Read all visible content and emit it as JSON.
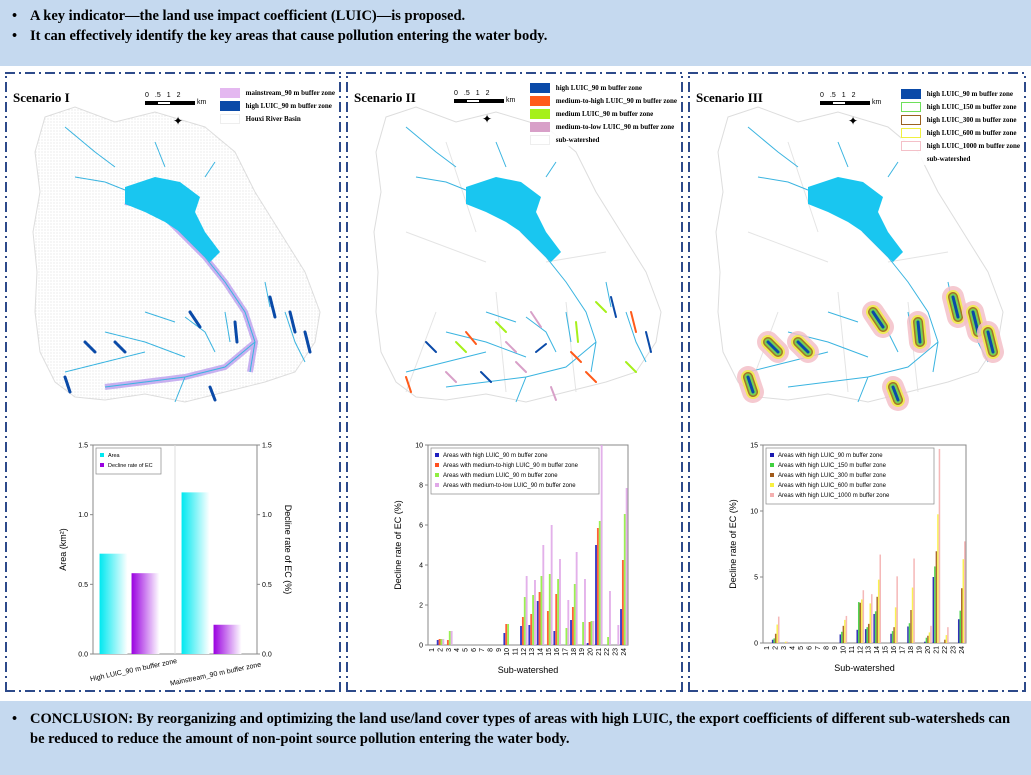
{
  "top_banner": {
    "bullets": [
      "A key indicator—the land use impact coefficient (LUIC)—is proposed.",
      "It can effectively identify the key areas that cause pollution entering the water body."
    ]
  },
  "bottom_banner": {
    "text": "CONCLUSION: By reorganizing and optimizing the land use/land cover types of areas with high LUIC, the export coefficients of different sub-watersheds can be reduced to reduce the amount of non-point source pollution entering the water body."
  },
  "scale_bar": {
    "ticks": [
      "0",
      ".5",
      "1",
      "2"
    ],
    "unit": "km"
  },
  "scenarios": [
    {
      "title": "Scenario I",
      "legend": [
        {
          "label": "mainstream_90 m buffer zone",
          "color": "#e4b8f0"
        },
        {
          "label": "high LUIC_90 m buffer zone",
          "color": "#0a4aa8"
        },
        {
          "label": "Houxi River Basin",
          "color": "#ffffff"
        }
      ]
    },
    {
      "title": "Scenario II",
      "legend": [
        {
          "label": "high LUIC_90 m buffer zone",
          "color": "#0a4aa8"
        },
        {
          "label": "medium-to-high LUIC_90 m buffer zone",
          "color": "#ff5a1a"
        },
        {
          "label": "medium LUIC_90 m buffer zone",
          "color": "#a6f01a"
        },
        {
          "label": "medium-to-low LUIC_90 m buffer zone",
          "color": "#d8a0c8"
        },
        {
          "label": "sub-watershed",
          "color": "#ffffff"
        }
      ]
    },
    {
      "title": "Scenario III",
      "legend": [
        {
          "label": "high LUIC_90 m buffer zone",
          "color": "#0a4aa8",
          "fill": true
        },
        {
          "label": "high LUIC_150 m buffer zone",
          "color": "#6ee05a"
        },
        {
          "label": "high LUIC_300 m buffer zone",
          "color": "#9a6020"
        },
        {
          "label": "high LUIC_600 m buffer zone",
          "color": "#f0f040"
        },
        {
          "label": "high LUIC_1000 m buffer zone",
          "color": "#f4c0c8"
        },
        {
          "label": "sub-watershed",
          "color": "#ffffff"
        }
      ]
    }
  ],
  "chart_data": [
    {
      "type": "bar",
      "title": "",
      "categories": [
        "High LUIC_90 m buffer zone",
        "Mainstream_90 m buffer zone"
      ],
      "series": [
        {
          "name": "Area",
          "values": [
            0.72,
            1.16
          ],
          "color": "#00e8f0"
        },
        {
          "name": "Decline rate of EC",
          "values": [
            0.58,
            0.21
          ],
          "color": "#9a00e0"
        }
      ],
      "ylabel": "Area (km²)",
      "y2label": "Decline rate of EC (%)",
      "ylim": [
        0,
        1.5
      ],
      "y2lim": [
        0,
        1.5
      ],
      "yticks": [
        "0.0",
        "0.5",
        "1.0",
        "1.5"
      ],
      "legend": "top-left"
    },
    {
      "type": "bar",
      "categories": [
        "1",
        "2",
        "3",
        "4",
        "5",
        "6",
        "7",
        "8",
        "9",
        "10",
        "11",
        "12",
        "13",
        "14",
        "15",
        "16",
        "17",
        "18",
        "19",
        "20",
        "21",
        "22",
        "23",
        "24"
      ],
      "series": [
        {
          "name": "Areas with high LUIC_90 m buffer zone",
          "color": "#2020c0",
          "values": [
            0,
            0.25,
            0,
            0,
            0,
            0,
            0,
            0,
            0,
            0.6,
            0,
            0.95,
            1.0,
            2.2,
            0,
            0.7,
            0,
            1.25,
            0,
            0.1,
            5.0,
            0,
            0,
            1.8
          ]
        },
        {
          "name": "Areas with medium-to-high LUIC_90 m buffer zone",
          "color": "#ff5020",
          "values": [
            0,
            0.3,
            0.25,
            0,
            0,
            0,
            0,
            0,
            0,
            1.05,
            0,
            1.4,
            1.55,
            2.65,
            1.7,
            2.55,
            0,
            1.9,
            0,
            1.15,
            5.85,
            0,
            0,
            4.25
          ]
        },
        {
          "name": "Areas with medium LUIC_90 m buffer zone",
          "color": "#90ee40",
          "values": [
            0,
            0.3,
            0.7,
            0,
            0,
            0,
            0,
            0,
            0,
            1.05,
            0,
            2.4,
            2.5,
            3.45,
            3.55,
            3.3,
            0.85,
            3.05,
            1.15,
            1.2,
            6.2,
            0.4,
            0,
            6.55
          ]
        },
        {
          "name": "Areas with medium-to-low LUIC_90 m buffer zone",
          "color": "#e0a8e8",
          "values": [
            0,
            0.3,
            0.7,
            0,
            0,
            0,
            0,
            0,
            0,
            0,
            0,
            3.45,
            3.25,
            5.0,
            6.0,
            4.3,
            2.25,
            4.65,
            3.3,
            1.2,
            10.0,
            2.7,
            1.0,
            7.85
          ]
        }
      ],
      "xlabel": "Sub-watershed",
      "ylabel": "Decline rate of EC (%)",
      "ylim": [
        0,
        10
      ],
      "yticks": [
        "0",
        "2",
        "4",
        "6",
        "8",
        "10"
      ],
      "legend": "top-left"
    },
    {
      "type": "bar",
      "categories": [
        "1",
        "2",
        "3",
        "4",
        "5",
        "6",
        "7",
        "8",
        "9",
        "10",
        "11",
        "12",
        "13",
        "14",
        "15",
        "16",
        "17",
        "18",
        "19",
        "20",
        "21",
        "22",
        "23",
        "24"
      ],
      "series": [
        {
          "name": "Areas with high LUIC_90 m buffer zone",
          "color": "#1a1ab0",
          "values": [
            0,
            0.25,
            0,
            0,
            0,
            0,
            0,
            0,
            0,
            0.65,
            0,
            1.0,
            1.05,
            2.2,
            0,
            0.7,
            0,
            1.25,
            0,
            0.1,
            5.0,
            0,
            0,
            1.8
          ]
        },
        {
          "name": "Areas with high LUIC_150 m buffer zone",
          "color": "#40d040",
          "values": [
            0,
            0.35,
            0,
            0,
            0,
            0,
            0,
            0,
            0,
            0.85,
            0,
            3.1,
            1.2,
            2.4,
            0,
            0.9,
            0,
            1.5,
            0,
            0.4,
            5.8,
            0,
            0,
            2.45
          ]
        },
        {
          "name": "Areas with high LUIC_300 m buffer zone",
          "color": "#a05a1a",
          "values": [
            0,
            0.7,
            0,
            0,
            0,
            0,
            0,
            0,
            0,
            1.3,
            0,
            3.05,
            1.45,
            3.5,
            0,
            1.2,
            0,
            2.5,
            0,
            0.55,
            6.95,
            0.25,
            0,
            4.15
          ]
        },
        {
          "name": "Areas with high LUIC_600 m buffer zone",
          "color": "#f8f040",
          "values": [
            0,
            1.4,
            0.1,
            0,
            0,
            0,
            0,
            0,
            0,
            1.75,
            0,
            3.3,
            3.0,
            4.8,
            0,
            2.7,
            0,
            4.2,
            0,
            0.8,
            9.75,
            0.6,
            0,
            6.35
          ]
        },
        {
          "name": "Areas with high LUIC_1000 m buffer zone",
          "color": "#f4b0b0",
          "values": [
            0,
            2.0,
            0.1,
            0,
            0,
            0,
            0,
            0,
            0,
            2.05,
            0,
            4.0,
            3.7,
            6.7,
            0,
            5.05,
            0,
            6.4,
            0,
            1.3,
            14.7,
            1.2,
            0,
            7.7
          ]
        }
      ],
      "xlabel": "Sub-watershed",
      "ylabel": "Decline rate of EC (%)",
      "ylim": [
        0,
        15
      ],
      "yticks": [
        "0",
        "5",
        "10",
        "15"
      ],
      "legend": "top-left"
    }
  ]
}
